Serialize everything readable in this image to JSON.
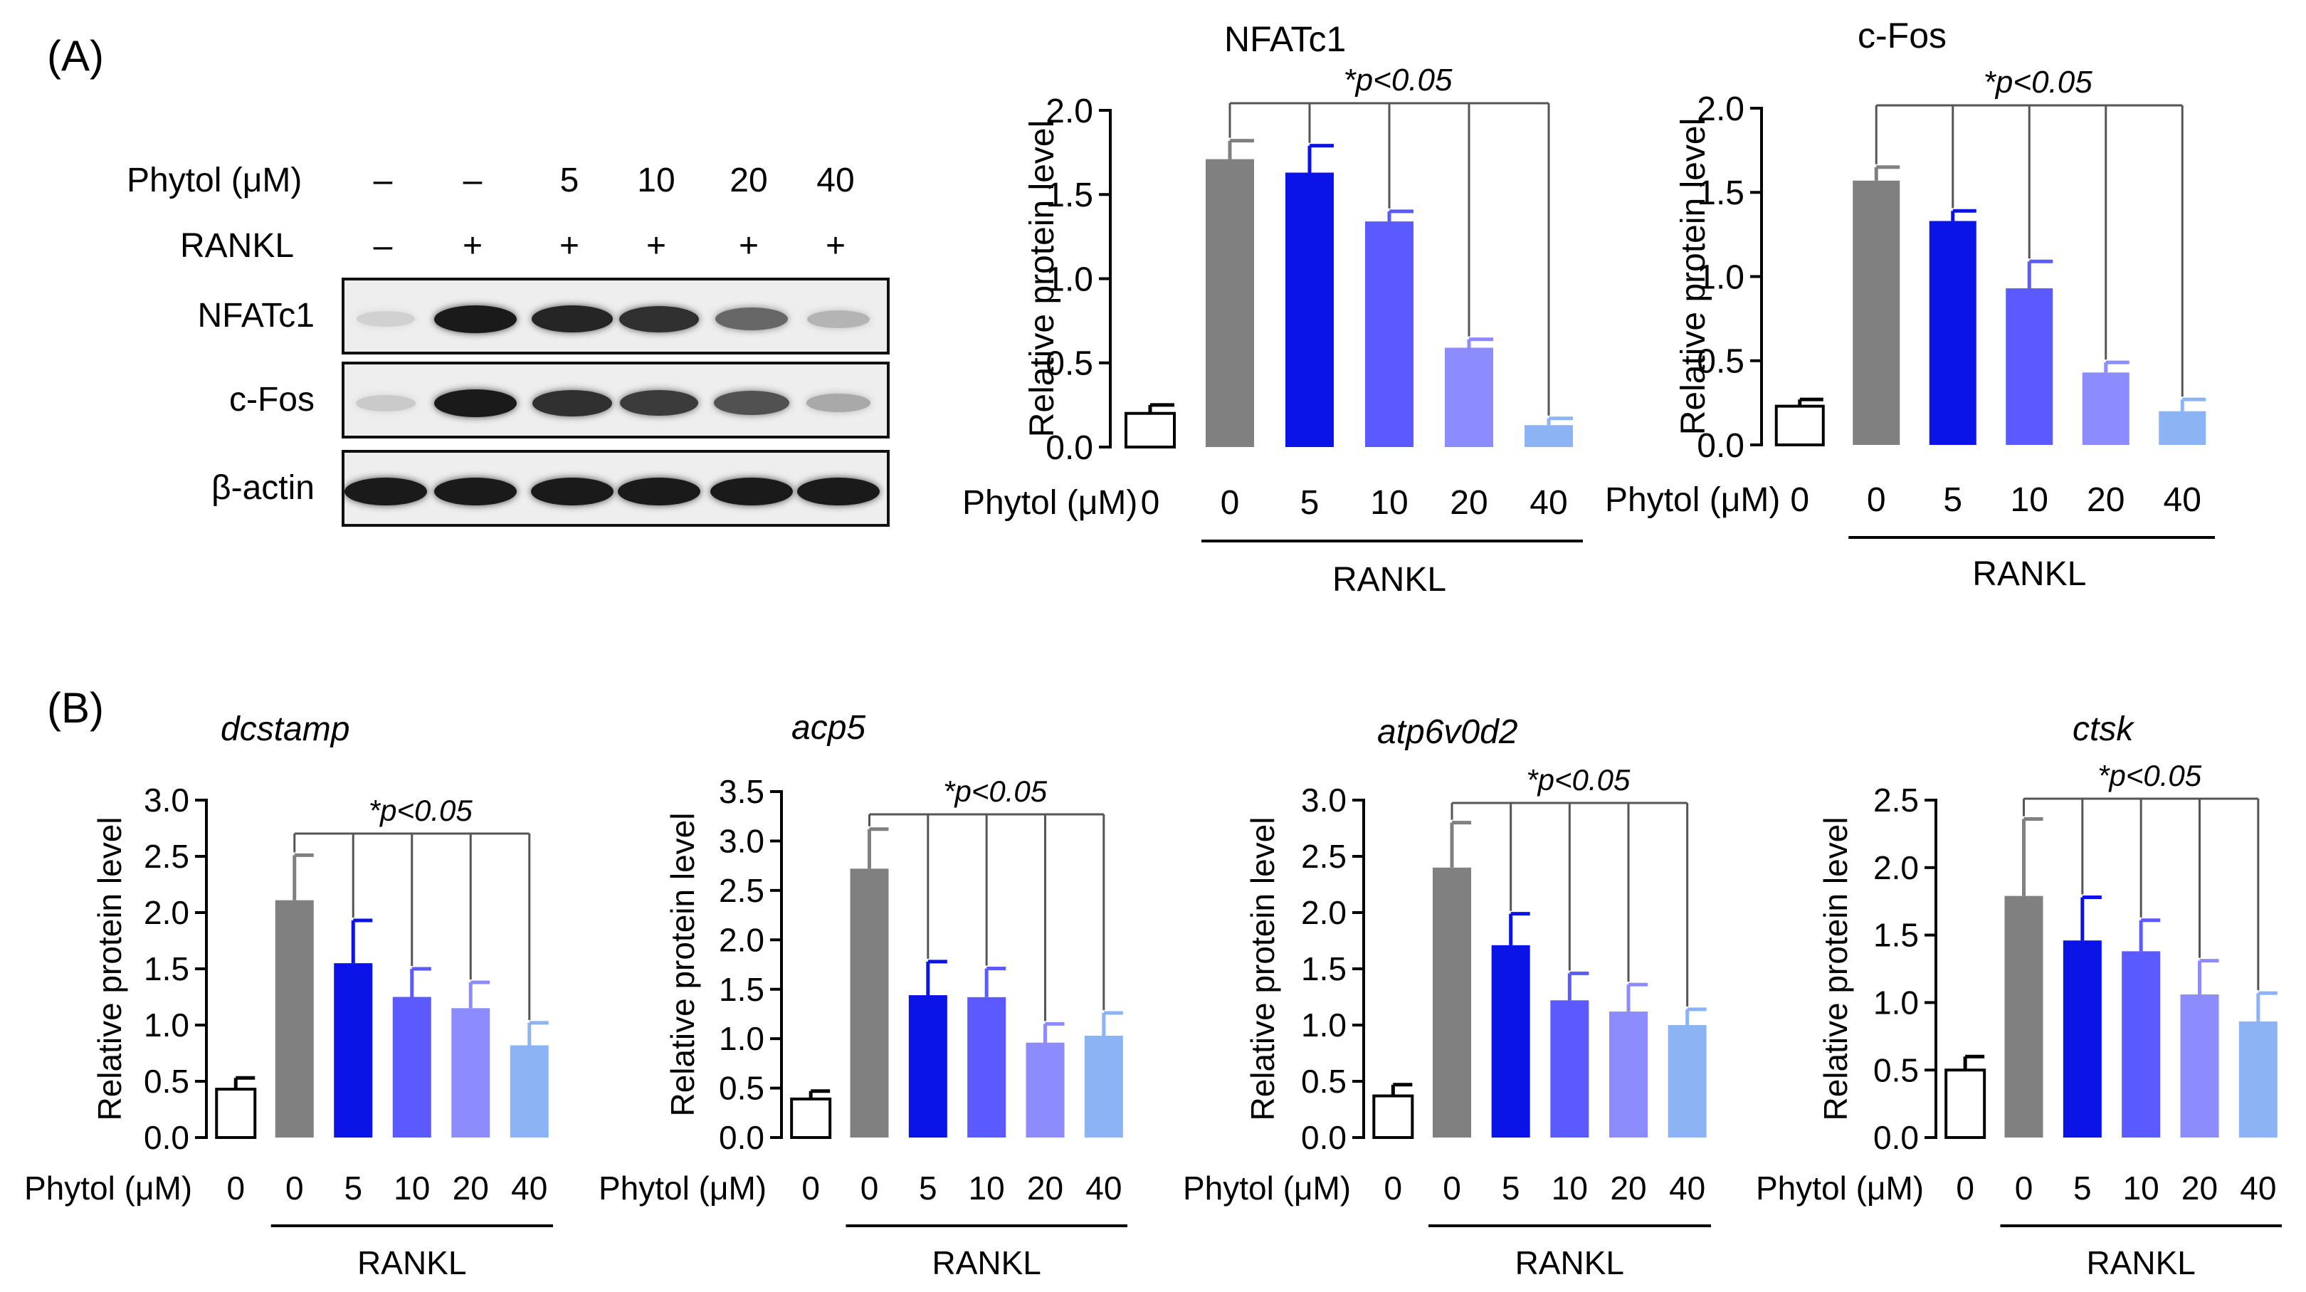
{
  "panel_labels": {
    "a": "(A)",
    "b": "(B)"
  },
  "blot": {
    "headers": {
      "phytol": "Phytol (μM)",
      "rankl": "RANKL"
    },
    "lanes": [
      {
        "phytol": "–",
        "rankl": "–"
      },
      {
        "phytol": "–",
        "rankl": "+"
      },
      {
        "phytol": "5",
        "rankl": "+"
      },
      {
        "phytol": "10",
        "rankl": "+"
      },
      {
        "phytol": "20",
        "rankl": "+"
      },
      {
        "phytol": "40",
        "rankl": "+"
      }
    ],
    "rows": [
      {
        "label": "NFATc1",
        "intensity": [
          0.12,
          0.95,
          0.9,
          0.85,
          0.6,
          0.25
        ]
      },
      {
        "label": "c-Fos",
        "intensity": [
          0.15,
          0.95,
          0.85,
          0.8,
          0.7,
          0.3
        ]
      },
      {
        "label": "β-actin",
        "intensity": [
          0.95,
          0.95,
          0.95,
          0.95,
          0.95,
          0.95
        ]
      }
    ]
  },
  "colors": [
    "#ffffff",
    "#808080",
    "#0a14e6",
    "#5a5aff",
    "#8c8cff",
    "#8cb4f5"
  ],
  "chart_data": [
    {
      "type": "bar",
      "title": "NFATc1",
      "italic_title": false,
      "ylabel": "Relative protein level",
      "xlabel_prefix": "Phytol (μM)",
      "categories": [
        "0",
        "0",
        "5",
        "10",
        "20",
        "40"
      ],
      "group_label": "RANKL",
      "significance": "*p<0.05",
      "values": [
        0.2,
        1.71,
        1.63,
        1.34,
        0.59,
        0.13
      ],
      "errors": [
        0.05,
        0.11,
        0.16,
        0.06,
        0.05,
        0.04
      ],
      "ylim": [
        0,
        2.0
      ],
      "yticks": [
        "0.0",
        "0.5",
        "1.0",
        "1.5",
        "2.0"
      ]
    },
    {
      "type": "bar",
      "title": "c-Fos",
      "italic_title": false,
      "ylabel": "Relative protein level",
      "xlabel_prefix": "Phytol (μM)",
      "categories": [
        "0",
        "0",
        "5",
        "10",
        "20",
        "40"
      ],
      "group_label": "RANKL",
      "significance": "*p<0.05",
      "values": [
        0.23,
        1.57,
        1.33,
        0.93,
        0.43,
        0.2
      ],
      "errors": [
        0.04,
        0.08,
        0.06,
        0.16,
        0.06,
        0.07
      ],
      "ylim": [
        0,
        2.0
      ],
      "yticks": [
        "0.0",
        "0.5",
        "1.0",
        "1.5",
        "2.0"
      ]
    },
    {
      "type": "bar",
      "title": "dcstamp",
      "italic_title": true,
      "ylabel": "Relative protein level",
      "xlabel_prefix": "Phytol (μM)",
      "categories": [
        "0",
        "0",
        "5",
        "10",
        "20",
        "40"
      ],
      "group_label": "RANKL",
      "significance": "*p<0.05",
      "values": [
        0.43,
        2.11,
        1.55,
        1.25,
        1.15,
        0.82
      ],
      "errors": [
        0.1,
        0.4,
        0.38,
        0.25,
        0.23,
        0.2
      ],
      "ylim": [
        0,
        3.0
      ],
      "yticks": [
        "0.0",
        "0.5",
        "1.0",
        "1.5",
        "2.0",
        "2.5",
        "3.0"
      ]
    },
    {
      "type": "bar",
      "title": "acp5",
      "italic_title": true,
      "ylabel": "Relative protein level",
      "xlabel_prefix": "Phytol (μM)",
      "categories": [
        "0",
        "0",
        "5",
        "10",
        "20",
        "40"
      ],
      "group_label": "RANKL",
      "significance": "*p<0.05",
      "values": [
        0.39,
        2.72,
        1.44,
        1.42,
        0.96,
        1.03
      ],
      "errors": [
        0.08,
        0.4,
        0.34,
        0.29,
        0.19,
        0.23
      ],
      "ylim": [
        0,
        3.5
      ],
      "yticks": [
        "0.0",
        "0.5",
        "1.0",
        "1.5",
        "2.0",
        "2.5",
        "3.0",
        "3.5"
      ]
    },
    {
      "type": "bar",
      "title": "atp6v0d2",
      "italic_title": true,
      "ylabel": "Relative protein level",
      "xlabel_prefix": "Phytol (μM)",
      "categories": [
        "0",
        "0",
        "5",
        "10",
        "20",
        "40"
      ],
      "group_label": "RANKL",
      "significance": "*p<0.05",
      "values": [
        0.37,
        2.4,
        1.71,
        1.22,
        1.12,
        1.0
      ],
      "errors": [
        0.1,
        0.4,
        0.28,
        0.24,
        0.24,
        0.14
      ],
      "ylim": [
        0,
        3.0
      ],
      "yticks": [
        "0.0",
        "0.5",
        "1.0",
        "1.5",
        "2.0",
        "2.5",
        "3.0"
      ]
    },
    {
      "type": "bar",
      "title": "ctsk",
      "italic_title": true,
      "ylabel": "Relative protein level",
      "xlabel_prefix": "Phytol (μM)",
      "categories": [
        "0",
        "0",
        "5",
        "10",
        "20",
        "40"
      ],
      "group_label": "RANKL",
      "significance": "*p<0.05",
      "values": [
        0.5,
        1.79,
        1.46,
        1.38,
        1.06,
        0.86
      ],
      "errors": [
        0.1,
        0.57,
        0.32,
        0.23,
        0.25,
        0.21
      ],
      "ylim": [
        0,
        2.5
      ],
      "yticks": [
        "0.0",
        "0.5",
        "1.0",
        "1.5",
        "2.0",
        "2.5"
      ]
    }
  ]
}
